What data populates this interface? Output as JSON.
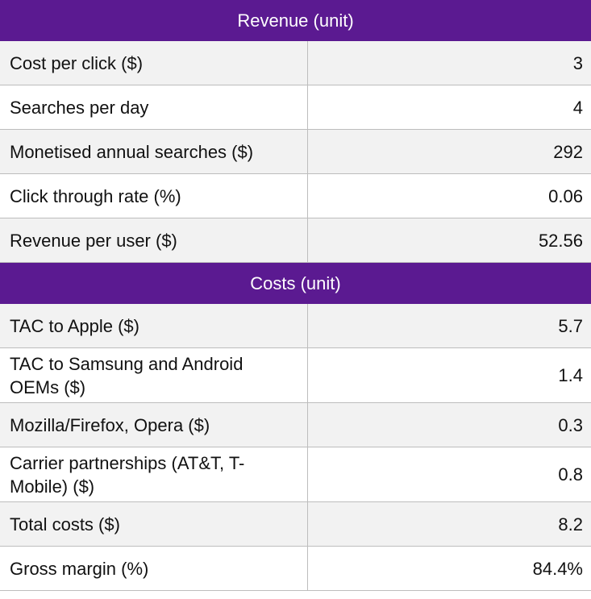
{
  "sections": [
    {
      "title": "Revenue (unit)",
      "rows": [
        {
          "label": "Cost per click ($)",
          "value": "3"
        },
        {
          "label": "Searches per day",
          "value": "4"
        },
        {
          "label": "Monetised annual searches ($)",
          "value": "292"
        },
        {
          "label": "Click through rate (%)",
          "value": "0.06"
        },
        {
          "label": "Revenue per user ($)",
          "value": "52.56"
        }
      ]
    },
    {
      "title": "Costs (unit)",
      "rows": [
        {
          "label": "TAC to Apple ($)",
          "value": "5.7"
        },
        {
          "label": "TAC to Samsung and Android OEMs ($)",
          "value": "1.4"
        },
        {
          "label": "Mozilla/Firefox, Opera ($)",
          "value": "0.3"
        },
        {
          "label": "Carrier partnerships (AT&T, T-Mobile) ($)",
          "value": "0.8"
        },
        {
          "label": "Total costs ($)",
          "value": "8.2"
        },
        {
          "label": "Gross margin (%)",
          "value": "84.4%"
        }
      ]
    }
  ],
  "colors": {
    "header_bg": "#5b1a91",
    "header_text": "#ffffff",
    "row_shade": "#f2f2f2",
    "row_white": "#ffffff",
    "grid": "#bdbdbd"
  }
}
